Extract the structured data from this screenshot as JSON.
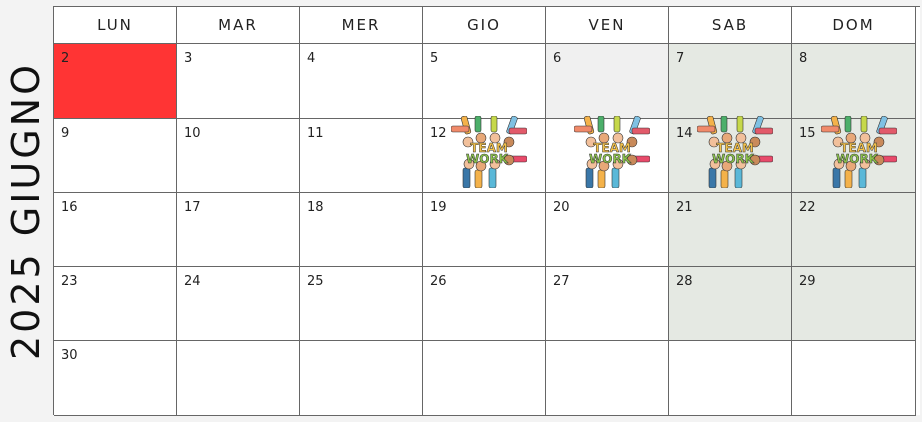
{
  "calendar": {
    "side_title": "2025 GIUGNO",
    "weekdays": [
      "LUN",
      "MAR",
      "MER",
      "GIO",
      "VEN",
      "SAB",
      "DOM"
    ],
    "days": {
      "d2": "2",
      "d3": "3",
      "d4": "4",
      "d5": "5",
      "d6": "6",
      "d7": "7",
      "d8": "8",
      "d9": "9",
      "d10": "10",
      "d11": "11",
      "d12": "12",
      "d14": "14",
      "d15": "15",
      "d16": "16",
      "d17": "17",
      "d18": "18",
      "d19": "19",
      "d20": "20",
      "d21": "21",
      "d22": "22",
      "d23": "23",
      "d24": "24",
      "d25": "25",
      "d26": "26",
      "d27": "27",
      "d28": "28",
      "d29": "29",
      "d30": "30"
    },
    "teamwork_text": {
      "line1": "TEAM",
      "line2": "WORK"
    }
  },
  "colors": {
    "highlight_red": "#ff3434",
    "weekend_green": "#e5e9e3",
    "muted_grey": "#f0f0f0"
  }
}
